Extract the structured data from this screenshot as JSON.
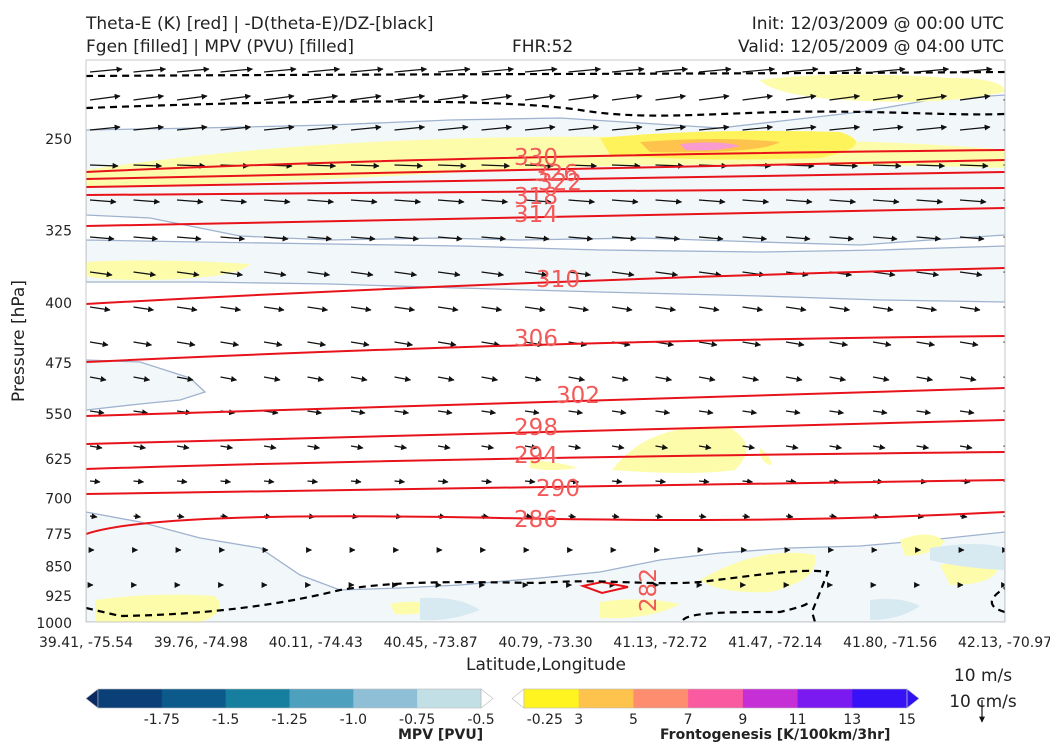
{
  "header": {
    "title_line1": "Theta-E (K) [red] | -D(theta-E)/DZ-[black]",
    "title_line2": "Fgen [filled] | MPV (PVU) [filled]",
    "fhr": "FHR:52",
    "init": "Init: 12/03/2009 @ 00:00 UTC",
    "valid": "Valid: 12/05/2009 @ 04:00 UTC"
  },
  "chart_data": {
    "type": "cross-section",
    "xlabel": "Latitude,Longitude",
    "ylabel": "Pressure [hPa]",
    "ylim": [
      1000,
      200
    ],
    "y_scale": "log",
    "y_ticks": [
      250,
      325,
      400,
      475,
      550,
      625,
      700,
      775,
      850,
      925,
      1000
    ],
    "x_tick_labels": [
      "39.41, -75.54",
      "39.76, -74.98",
      "40.11, -74.43",
      "40.45, -73.87",
      "40.79, -73.30",
      "41.13, -72.72",
      "41.47, -72.14",
      "41.80, -71.56",
      "42.13, -70.97"
    ],
    "theta_e_contours": {
      "color": "#e8121a",
      "label_color": "#f25a5a",
      "levels": [
        282,
        286,
        290,
        294,
        298,
        302,
        306,
        310,
        314,
        318,
        322,
        326,
        330
      ]
    },
    "stability_contour": {
      "color": "#000000",
      "style": "dashed"
    },
    "wind_reference": {
      "vector_label": "10 m/s",
      "vertical_label": "10 cm/s"
    },
    "grid": false
  },
  "colorbars": {
    "mpv": {
      "label": "MPV [PVU]",
      "tick_labels": [
        "-1.75",
        "-1.5",
        "-1.25",
        "-1.0",
        "-0.75",
        "-0.5",
        "-0.25"
      ],
      "colors": [
        "#0b2a63",
        "#0a3f78",
        "#0c5a8c",
        "#167f9f",
        "#4ea0bf",
        "#8ebfd6",
        "#c2dfe6",
        "#ffffff"
      ]
    },
    "fgen": {
      "label": "Frontogenesis [K/100km/3hr]",
      "tick_labels": [
        "3",
        "5",
        "7",
        "9",
        "11",
        "13",
        "15"
      ],
      "colors": [
        "#ffffff",
        "#fff41f",
        "#fec34c",
        "#fd8d6e",
        "#f95aa0",
        "#c62fd6",
        "#7a1af0",
        "#3812f7",
        "#2f12ee"
      ]
    }
  }
}
